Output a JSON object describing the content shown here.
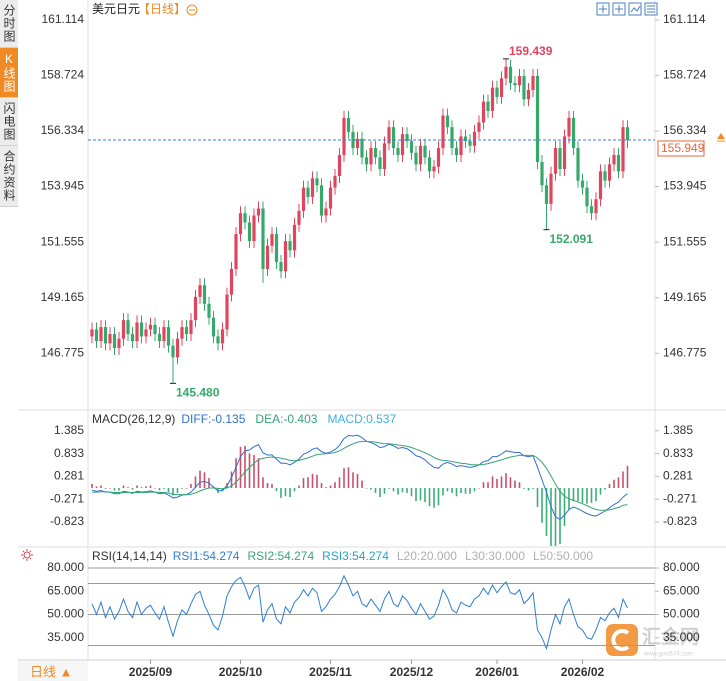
{
  "chart_data": [
    {
      "type": "candlestick",
      "title": "美元日元",
      "period": "【日线】",
      "up_color": "#e0455e",
      "down_color": "#35a86a",
      "open": [
        147.5,
        147.8,
        147.3,
        147.9,
        147.2,
        147.6,
        147.0,
        147.4,
        148.2,
        147.6,
        147.3,
        148.1,
        147.5,
        147.8,
        148.0,
        147.6,
        147.3,
        147.9,
        147.1,
        146.6,
        147.4,
        147.9,
        147.6,
        148.2,
        149.2,
        149.7,
        148.9,
        148.3,
        147.5,
        147.2,
        147.8,
        149.3,
        150.4,
        151.9,
        152.8,
        152.4,
        151.6,
        152.7,
        153.0,
        150.4,
        151.4,
        151.9,
        150.7,
        150.3,
        151.6,
        151.2,
        152.3,
        152.9,
        153.9,
        153.5,
        154.3,
        154.0,
        152.7,
        153.0,
        153.9,
        154.4,
        155.3,
        156.9,
        156.3,
        155.6,
        156.0,
        155.2,
        154.9,
        155.6,
        155.2,
        154.7,
        155.8,
        156.5,
        155.6,
        155.3,
        156.2,
        155.9,
        155.4,
        154.9,
        155.7,
        155.2,
        154.6,
        154.8,
        155.6,
        157.0,
        156.5,
        155.6,
        155.3,
        156.1,
        155.9,
        155.7,
        156.3,
        156.7,
        157.6,
        157.2,
        158.2,
        157.8,
        158.6,
        159.1,
        158.4,
        158.3,
        158.7,
        157.7,
        158.1,
        158.7,
        155.0,
        154.0,
        153.2,
        154.5,
        155.6,
        154.7,
        156.1,
        156.9,
        155.6,
        154.2,
        153.9,
        153.1,
        152.8,
        153.4,
        154.6,
        154.2,
        154.9,
        155.3,
        154.6,
        156.5
      ],
      "high": [
        148.1,
        148.1,
        148.2,
        148.2,
        147.9,
        147.9,
        147.7,
        148.5,
        148.5,
        147.9,
        148.4,
        148.4,
        148.1,
        148.3,
        148.3,
        147.9,
        148.2,
        148.2,
        147.4,
        147.7,
        148.2,
        148.2,
        148.5,
        149.5,
        150.0,
        150.0,
        149.2,
        148.6,
        147.8,
        148.1,
        149.6,
        150.7,
        152.2,
        153.1,
        153.1,
        152.7,
        153.0,
        153.3,
        153.3,
        151.7,
        152.2,
        152.2,
        151.0,
        151.9,
        151.9,
        152.6,
        153.2,
        154.2,
        154.2,
        154.6,
        154.6,
        154.3,
        153.3,
        154.2,
        154.7,
        155.6,
        157.2,
        157.2,
        156.6,
        156.3,
        156.3,
        155.5,
        155.9,
        155.9,
        155.5,
        156.1,
        156.8,
        156.8,
        155.9,
        156.5,
        156.5,
        156.2,
        155.7,
        156.0,
        156.0,
        155.5,
        155.1,
        155.9,
        157.3,
        157.3,
        156.8,
        155.9,
        156.4,
        156.4,
        156.2,
        156.6,
        157.0,
        157.9,
        157.9,
        158.5,
        158.5,
        158.9,
        159.439,
        159.4,
        158.7,
        159.0,
        159.0,
        158.4,
        159.0,
        159.0,
        155.3,
        154.3,
        154.8,
        155.9,
        155.9,
        156.4,
        157.2,
        157.2,
        155.9,
        154.5,
        154.2,
        153.4,
        153.7,
        154.9,
        154.9,
        155.2,
        155.6,
        155.6,
        156.8,
        156.8
      ],
      "low": [
        147.2,
        147.0,
        147.0,
        146.9,
        146.9,
        146.7,
        146.7,
        147.1,
        147.3,
        147.0,
        147.0,
        147.2,
        147.2,
        147.5,
        147.3,
        147.0,
        147.0,
        146.8,
        145.48,
        146.3,
        147.1,
        147.3,
        147.3,
        147.9,
        148.9,
        148.6,
        148.0,
        147.2,
        146.9,
        146.9,
        147.5,
        149.0,
        150.1,
        151.6,
        152.1,
        151.3,
        151.3,
        152.4,
        149.8,
        150.1,
        151.1,
        150.4,
        150.0,
        150.0,
        150.9,
        150.9,
        152.0,
        152.6,
        153.2,
        153.2,
        153.7,
        152.4,
        152.4,
        152.7,
        153.6,
        154.1,
        155.0,
        156.0,
        155.3,
        155.3,
        154.9,
        154.6,
        154.6,
        154.9,
        154.4,
        154.4,
        155.5,
        155.3,
        155.0,
        155.0,
        155.6,
        155.1,
        154.6,
        154.6,
        154.9,
        154.3,
        154.3,
        154.5,
        155.3,
        156.2,
        155.3,
        155.0,
        155.0,
        155.6,
        155.4,
        155.4,
        156.0,
        156.4,
        156.9,
        156.9,
        157.5,
        157.5,
        158.3,
        158.1,
        158.0,
        158.0,
        157.4,
        157.4,
        157.8,
        154.7,
        153.7,
        152.091,
        152.9,
        154.2,
        154.4,
        154.4,
        155.8,
        155.3,
        153.9,
        153.6,
        152.8,
        152.5,
        152.5,
        153.1,
        153.9,
        153.9,
        154.6,
        154.3,
        154.3,
        155.6
      ],
      "close": [
        147.8,
        147.3,
        147.9,
        147.2,
        147.6,
        147.0,
        147.4,
        148.2,
        147.6,
        147.3,
        148.1,
        147.5,
        147.8,
        148.0,
        147.6,
        147.3,
        147.9,
        147.1,
        146.6,
        147.4,
        147.9,
        147.6,
        148.2,
        149.2,
        149.7,
        148.9,
        148.3,
        147.5,
        147.2,
        147.8,
        149.3,
        150.4,
        151.9,
        152.8,
        152.4,
        151.6,
        152.7,
        153.0,
        150.4,
        151.4,
        151.9,
        150.7,
        150.3,
        151.6,
        151.2,
        152.3,
        152.9,
        153.9,
        153.5,
        154.3,
        154.0,
        152.7,
        153.0,
        153.9,
        154.4,
        155.3,
        156.9,
        156.3,
        155.6,
        156.0,
        155.2,
        154.9,
        155.6,
        155.2,
        154.7,
        155.8,
        156.5,
        155.6,
        155.3,
        156.2,
        155.9,
        155.4,
        154.9,
        155.7,
        155.2,
        154.6,
        154.8,
        155.6,
        157.0,
        156.5,
        155.6,
        155.3,
        156.1,
        155.9,
        155.7,
        156.3,
        156.7,
        157.6,
        157.2,
        158.2,
        157.8,
        158.6,
        159.1,
        158.4,
        158.3,
        158.7,
        157.7,
        158.1,
        158.7,
        155.0,
        154.0,
        153.2,
        154.5,
        155.6,
        154.7,
        156.1,
        156.9,
        155.6,
        154.2,
        153.9,
        153.1,
        152.8,
        153.4,
        154.6,
        154.2,
        154.9,
        155.3,
        154.6,
        156.5,
        155.949
      ],
      "ylim": [
        144.42,
        161.97
      ],
      "yticks": [
        161.114,
        158.724,
        156.334,
        153.945,
        151.555,
        149.165,
        146.775
      ],
      "last_price": 155.949,
      "last_color": "#3b7fd4",
      "last_label_color": "#e8663a",
      "extremes": [
        {
          "value": 159.439,
          "label": "159.439"
        },
        {
          "value": 152.091,
          "label": "152.091"
        },
        {
          "value": 145.48,
          "label": "145.480"
        }
      ]
    },
    {
      "type": "macd",
      "title": "MACD(26,12,9)",
      "ylim": [
        -1.38,
        1.84
      ],
      "yticks": [
        1.385,
        0.833,
        0.281,
        -0.271,
        -0.823
      ],
      "diff": {
        "label": "DIFF:-0.135",
        "color": "#2f6fd0",
        "values": [
          -0.05,
          -0.08,
          -0.06,
          -0.1,
          -0.1,
          -0.14,
          -0.14,
          -0.08,
          -0.1,
          -0.13,
          -0.08,
          -0.1,
          -0.09,
          -0.07,
          -0.1,
          -0.14,
          -0.12,
          -0.17,
          -0.24,
          -0.22,
          -0.17,
          -0.16,
          -0.1,
          0.02,
          0.14,
          0.16,
          0.12,
          0.02,
          -0.07,
          -0.06,
          0.06,
          0.25,
          0.5,
          0.76,
          0.9,
          0.92,
          1.0,
          1.05,
          0.85,
          0.8,
          0.8,
          0.7,
          0.6,
          0.6,
          0.56,
          0.62,
          0.7,
          0.82,
          0.86,
          0.94,
          0.97,
          0.88,
          0.84,
          0.87,
          0.93,
          1.03,
          1.2,
          1.27,
          1.26,
          1.28,
          1.22,
          1.13,
          1.1,
          1.05,
          0.98,
          1.0,
          1.06,
          1.02,
          0.96,
          0.98,
          0.95,
          0.88,
          0.78,
          0.75,
          0.68,
          0.58,
          0.5,
          0.48,
          0.58,
          0.62,
          0.58,
          0.52,
          0.54,
          0.52,
          0.5,
          0.52,
          0.56,
          0.64,
          0.66,
          0.76,
          0.76,
          0.82,
          0.9,
          0.88,
          0.86,
          0.86,
          0.78,
          0.76,
          0.78,
          0.5,
          0.2,
          -0.1,
          -0.45,
          -0.7,
          -0.76,
          -0.66,
          -0.52,
          -0.46,
          -0.5,
          -0.56,
          -0.62,
          -0.66,
          -0.68,
          -0.62,
          -0.56,
          -0.48,
          -0.4,
          -0.34,
          -0.22,
          -0.135
        ]
      },
      "dea": {
        "label": "DEA:-0.403",
        "color": "#35a37a",
        "values": [
          -0.1,
          -0.1,
          -0.09,
          -0.09,
          -0.1,
          -0.11,
          -0.11,
          -0.11,
          -0.11,
          -0.11,
          -0.11,
          -0.11,
          -0.11,
          -0.1,
          -0.1,
          -0.11,
          -0.11,
          -0.12,
          -0.15,
          -0.16,
          -0.16,
          -0.16,
          -0.15,
          -0.12,
          -0.07,
          -0.03,
          0.0,
          0.0,
          -0.01,
          -0.02,
          0.0,
          0.05,
          0.14,
          0.26,
          0.39,
          0.5,
          0.6,
          0.69,
          0.72,
          0.74,
          0.75,
          0.74,
          0.72,
          0.7,
          0.67,
          0.66,
          0.67,
          0.7,
          0.73,
          0.77,
          0.81,
          0.82,
          0.83,
          0.84,
          0.86,
          0.9,
          0.96,
          1.02,
          1.07,
          1.11,
          1.13,
          1.13,
          1.12,
          1.11,
          1.09,
          1.07,
          1.07,
          1.06,
          1.04,
          1.03,
          1.01,
          0.98,
          0.94,
          0.9,
          0.85,
          0.8,
          0.74,
          0.69,
          0.67,
          0.66,
          0.64,
          0.62,
          0.6,
          0.59,
          0.57,
          0.56,
          0.56,
          0.57,
          0.59,
          0.62,
          0.65,
          0.68,
          0.72,
          0.75,
          0.77,
          0.79,
          0.79,
          0.79,
          0.79,
          0.73,
          0.62,
          0.48,
          0.29,
          0.09,
          -0.08,
          -0.2,
          -0.26,
          -0.3,
          -0.34,
          -0.38,
          -0.43,
          -0.48,
          -0.52,
          -0.54,
          -0.54,
          -0.53,
          -0.5,
          -0.47,
          -0.42,
          -0.403
        ]
      },
      "macd": {
        "label": "MACD:0.537",
        "color": "#3fb0d8",
        "up_color": "#c8506a",
        "down_color": "#3cae78",
        "values": [
          0.1,
          0.04,
          0.06,
          -0.02,
          0,
          -0.06,
          -0.06,
          0.06,
          0.02,
          -0.04,
          0.06,
          0.02,
          0.04,
          0.06,
          0,
          -0.06,
          -0.02,
          -0.1,
          -0.18,
          -0.12,
          -0.02,
          0,
          0.1,
          0.28,
          0.42,
          0.38,
          0.24,
          0.04,
          -0.12,
          -0.08,
          0.12,
          0.4,
          0.72,
          1.0,
          1.02,
          0.84,
          0.8,
          0.72,
          0.26,
          0.12,
          0.1,
          -0.08,
          -0.24,
          -0.2,
          -0.22,
          -0.08,
          0.06,
          0.24,
          0.26,
          0.34,
          0.32,
          0.12,
          0.02,
          0.06,
          0.14,
          0.26,
          0.48,
          0.5,
          0.38,
          0.34,
          0.18,
          0,
          -0.04,
          -0.12,
          -0.22,
          -0.14,
          -0.02,
          -0.08,
          -0.16,
          -0.1,
          -0.12,
          -0.2,
          -0.32,
          -0.3,
          -0.34,
          -0.44,
          -0.48,
          -0.42,
          -0.18,
          -0.08,
          -0.12,
          -0.2,
          -0.12,
          -0.14,
          -0.14,
          -0.08,
          0,
          0.14,
          0.14,
          0.28,
          0.22,
          0.28,
          0.36,
          0.26,
          0.18,
          0.14,
          -0.02,
          -0.06,
          -0.02,
          -0.46,
          -0.84,
          -1.16,
          -1.48,
          -1.58,
          -1.36,
          -0.92,
          -0.52,
          -0.32,
          -0.32,
          -0.36,
          -0.38,
          -0.36,
          -0.32,
          -0.16,
          -0.04,
          0.1,
          0.2,
          0.26,
          0.4,
          0.537
        ]
      }
    },
    {
      "type": "line",
      "title": "RSI(14,14,14)",
      "ylim": [
        20.6,
        85.2
      ],
      "yticks": [
        {
          "value": 80,
          "label": "80.000"
        },
        {
          "value": 65,
          "label": "65.000"
        },
        {
          "value": 50,
          "label": "50.000"
        },
        {
          "value": 35,
          "label": "35.000"
        }
      ],
      "guides": [
        80,
        70,
        50,
        30
      ],
      "guide_color": "#9a9a9a",
      "color": "#2f7fd0",
      "legend": [
        {
          "label": "RSI1:54.274",
          "color": "#2f7fd0"
        },
        {
          "label": "RSI2:54.274",
          "color": "#3aa37a"
        },
        {
          "label": "RSI3:54.274",
          "color": "#29a3c0"
        },
        {
          "label": "L20:20.000",
          "color": "#b0b0b0"
        },
        {
          "label": "L30:30.000",
          "color": "#b0b0b0"
        },
        {
          "label": "L50:50.000",
          "color": "#b0b0b0"
        }
      ],
      "values": [
        57,
        50,
        58,
        48,
        55,
        47,
        52,
        60,
        52,
        48,
        58,
        50,
        54,
        56,
        51,
        47,
        55,
        45,
        36,
        46,
        53,
        50,
        57,
        63,
        65,
        56,
        50,
        43,
        40,
        49,
        62,
        68,
        72,
        74,
        68,
        60,
        67,
        69,
        45,
        53,
        57,
        47,
        44,
        55,
        51,
        58,
        61,
        66,
        62,
        67,
        64,
        52,
        55,
        60,
        63,
        68,
        75,
        69,
        62,
        65,
        57,
        55,
        60,
        56,
        52,
        60,
        65,
        57,
        55,
        62,
        59,
        54,
        50,
        57,
        52,
        47,
        49,
        56,
        66,
        61,
        53,
        51,
        58,
        56,
        55,
        60,
        62,
        67,
        63,
        69,
        64,
        68,
        71,
        64,
        63,
        66,
        57,
        60,
        64,
        40,
        35,
        28,
        40,
        50,
        44,
        55,
        60,
        50,
        42,
        40,
        35,
        34,
        40,
        48,
        46,
        51,
        54,
        48,
        60,
        54.274
      ],
      "xticks": [
        {
          "value": 13,
          "label": "2025/09"
        },
        {
          "value": 33,
          "label": "2025/10"
        },
        {
          "value": 53,
          "label": "2025/11"
        },
        {
          "value": 71,
          "label": "2025/12"
        },
        {
          "value": 90,
          "label": "2026/01"
        },
        {
          "value": 109,
          "label": "2026/02"
        }
      ]
    }
  ],
  "sidebar": {
    "tabs": [
      "分时图",
      "K线图",
      "闪电图",
      "合约资料"
    ],
    "active": 1
  },
  "footer": {
    "period": "日线 ▲"
  },
  "watermark": {
    "name": "汇金网",
    "url": "www.gold678.com"
  }
}
